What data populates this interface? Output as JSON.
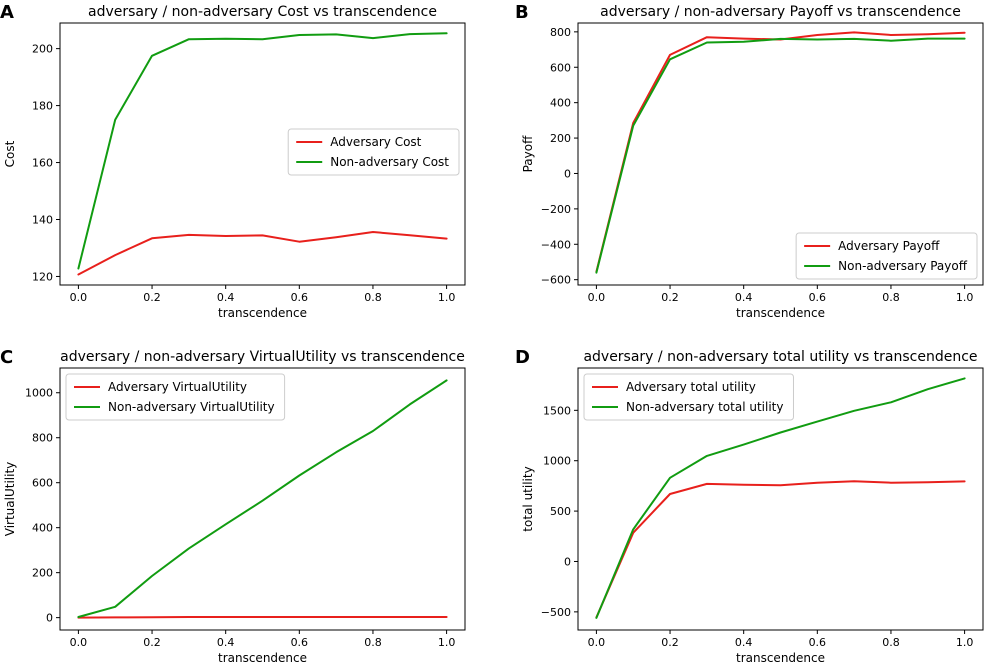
{
  "chart_data": [
    {
      "panel": "A",
      "type": "line",
      "title": "adversary / non-adversary Cost vs transcendence",
      "xlabel": "transcendence",
      "ylabel": "Cost",
      "x": [
        0.0,
        0.1,
        0.2,
        0.3,
        0.4,
        0.5,
        0.6,
        0.7,
        0.8,
        0.9,
        1.0
      ],
      "xlim": [
        -0.05,
        1.05
      ],
      "ylim": [
        117,
        209
      ],
      "xticks": [
        0.0,
        0.2,
        0.4,
        0.6,
        0.8,
        1.0
      ],
      "xtick_labels": [
        "0.0",
        "0.2",
        "0.4",
        "0.6",
        "0.8",
        "1.0"
      ],
      "yticks": [
        120,
        140,
        160,
        180,
        200
      ],
      "ytick_labels": [
        "120",
        "140",
        "160",
        "180",
        "200"
      ],
      "legend_loc": "center-right",
      "series": [
        {
          "name": "Adversary Cost",
          "color": "#e8201c",
          "values": [
            120.7,
            127.5,
            133.4,
            134.6,
            134.2,
            134.4,
            132.2,
            133.8,
            135.6,
            134.5,
            133.3
          ]
        },
        {
          "name": "Non-adversary Cost",
          "color": "#119c11",
          "values": [
            122.8,
            175.0,
            197.5,
            203.3,
            203.5,
            203.3,
            204.8,
            205.0,
            203.7,
            205.1,
            205.4
          ]
        }
      ]
    },
    {
      "panel": "B",
      "type": "line",
      "title": "adversary / non-adversary Payoff vs transcendence",
      "xlabel": "transcendence",
      "ylabel": "Payoff",
      "x": [
        0.0,
        0.1,
        0.2,
        0.3,
        0.4,
        0.5,
        0.6,
        0.7,
        0.8,
        0.9,
        1.0
      ],
      "xlim": [
        -0.05,
        1.05
      ],
      "ylim": [
        -630,
        850
      ],
      "xticks": [
        0.0,
        0.2,
        0.4,
        0.6,
        0.8,
        1.0
      ],
      "xtick_labels": [
        "0.0",
        "0.2",
        "0.4",
        "0.6",
        "0.8",
        "1.0"
      ],
      "yticks": [
        -600,
        -400,
        -200,
        0,
        200,
        400,
        600,
        800
      ],
      "ytick_labels": [
        "−600",
        "−400",
        "−200",
        "0",
        "200",
        "400",
        "600",
        "800"
      ],
      "legend_loc": "lower-right",
      "series": [
        {
          "name": "Adversary Payoff",
          "color": "#e8201c",
          "values": [
            -555,
            285,
            670,
            770,
            762,
            757,
            782,
            797,
            782,
            787,
            795
          ]
        },
        {
          "name": "Non-adversary Payoff",
          "color": "#119c11",
          "values": [
            -560,
            270,
            645,
            740,
            744,
            760,
            757,
            760,
            750,
            762,
            762
          ]
        }
      ]
    },
    {
      "panel": "C",
      "type": "line",
      "title": "adversary / non-adversary VirtualUtility vs transcendence",
      "xlabel": "transcendence",
      "ylabel": "VirtualUtility",
      "x": [
        0.0,
        0.1,
        0.2,
        0.3,
        0.4,
        0.5,
        0.6,
        0.7,
        0.8,
        0.9,
        1.0
      ],
      "xlim": [
        -0.05,
        1.05
      ],
      "ylim": [
        -55,
        1110
      ],
      "xticks": [
        0.0,
        0.2,
        0.4,
        0.6,
        0.8,
        1.0
      ],
      "xtick_labels": [
        "0.0",
        "0.2",
        "0.4",
        "0.6",
        "0.8",
        "1.0"
      ],
      "yticks": [
        0,
        200,
        400,
        600,
        800,
        1000
      ],
      "ytick_labels": [
        "0",
        "200",
        "400",
        "600",
        "800",
        "1000"
      ],
      "legend_loc": "upper-left",
      "series": [
        {
          "name": "Adversary VirtualUtility",
          "color": "#e8201c",
          "values": [
            0,
            1,
            2,
            3,
            3,
            3,
            3,
            3,
            3,
            3,
            3
          ]
        },
        {
          "name": "Non-adversary VirtualUtility",
          "color": "#119c11",
          "values": [
            3,
            48,
            185,
            308,
            415,
            520,
            632,
            735,
            830,
            948,
            1055
          ]
        }
      ]
    },
    {
      "panel": "D",
      "type": "line",
      "title": "adversary / non-adversary total utility vs transcendence",
      "xlabel": "transcendence",
      "ylabel": "total utility",
      "x": [
        0.0,
        0.1,
        0.2,
        0.3,
        0.4,
        0.5,
        0.6,
        0.7,
        0.8,
        0.9,
        1.0
      ],
      "xlim": [
        -0.05,
        1.05
      ],
      "ylim": [
        -680,
        1920
      ],
      "xticks": [
        0.0,
        0.2,
        0.4,
        0.6,
        0.8,
        1.0
      ],
      "xtick_labels": [
        "0.0",
        "0.2",
        "0.4",
        "0.6",
        "0.8",
        "1.0"
      ],
      "yticks": [
        -500,
        0,
        500,
        1000,
        1500
      ],
      "ytick_labels": [
        "−500",
        "0",
        "500",
        "1000",
        "1500"
      ],
      "legend_loc": "upper-left",
      "series": [
        {
          "name": "Adversary total utility",
          "color": "#e8201c",
          "values": [
            -555,
            285,
            670,
            770,
            762,
            757,
            782,
            797,
            782,
            787,
            795
          ]
        },
        {
          "name": "Non-adversary total utility",
          "color": "#119c11",
          "values": [
            -560,
            318,
            830,
            1048,
            1160,
            1280,
            1388,
            1495,
            1580,
            1710,
            1817
          ]
        }
      ]
    }
  ]
}
